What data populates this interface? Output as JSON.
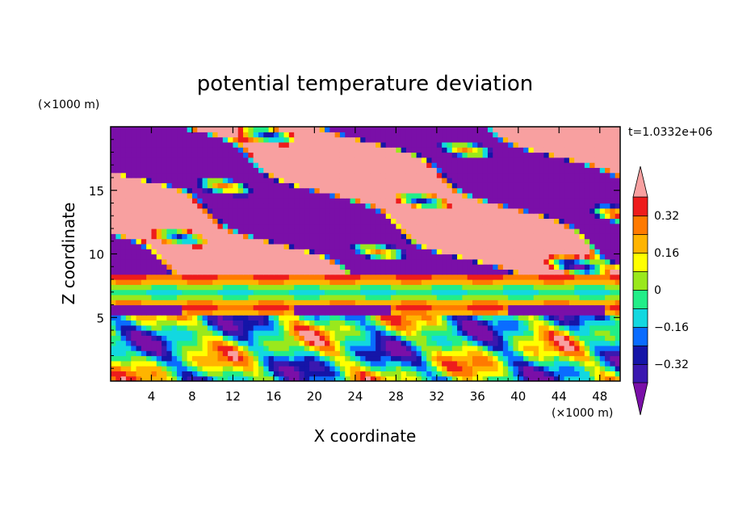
{
  "chart_data": {
    "type": "heatmap",
    "title": "potential temperature deviation",
    "xlabel": "X coordinate",
    "ylabel": "Z coordinate",
    "x_unit": "(×1000 m)",
    "y_unit": "(×1000 m)",
    "time_label": "t=1.0332e+06",
    "xlim": [
      0,
      50
    ],
    "ylim": [
      0,
      20
    ],
    "x_ticks": [
      "4",
      "8",
      "12",
      "16",
      "20",
      "24",
      "28",
      "32",
      "36",
      "40",
      "44",
      "48"
    ],
    "y_ticks": [
      "5",
      "10",
      "15"
    ],
    "x_tick_values": [
      4,
      8,
      12,
      16,
      20,
      24,
      28,
      32,
      36,
      40,
      44,
      48
    ],
    "y_tick_values": [
      5,
      10,
      15
    ],
    "colorbar": {
      "levels": [
        -0.4,
        -0.32,
        -0.24,
        -0.16,
        -0.08,
        0,
        0.08,
        0.16,
        0.24,
        0.32,
        0.4
      ],
      "labeled": [
        {
          "value": 0.32,
          "text": "0.32"
        },
        {
          "value": 0.16,
          "text": "0.16"
        },
        {
          "value": 0,
          "text": "0"
        },
        {
          "value": -0.16,
          "text": "−0.16"
        },
        {
          "value": -0.32,
          "text": "−0.32"
        }
      ],
      "colors": [
        "#7a0fa8",
        "#3a18b0",
        "#1515a8",
        "#0a6cff",
        "#12d8e0",
        "#22ee88",
        "#9ae81c",
        "#ffff00",
        "#ffb400",
        "#ff7a00",
        "#ee1c1c",
        "#f8a0a0"
      ],
      "below_color": "#7a0fa8",
      "above_color": "#f8a0a0"
    }
  }
}
